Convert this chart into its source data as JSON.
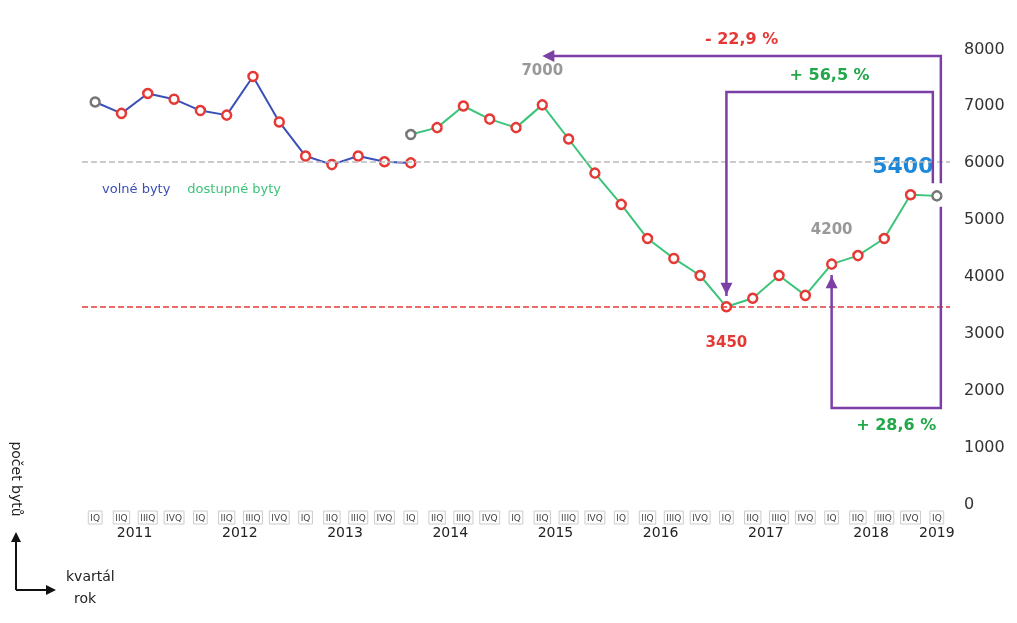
{
  "chart_data": {
    "type": "line",
    "ylabel": "počet bytů",
    "xlabel": "kvartál",
    "categories": [
      "IQ",
      "IIQ",
      "IIIQ",
      "IVQ",
      "IQ",
      "IIQ",
      "IIIQ",
      "IVQ",
      "IQ",
      "IIQ",
      "IIIQ",
      "IVQ",
      "IQ",
      "IIQ",
      "IIIQ",
      "IVQ",
      "IQ",
      "IIQ",
      "IIIQ",
      "IVQ",
      "IQ",
      "IIQ",
      "IIIQ",
      "IVQ",
      "IQ",
      "IIQ",
      "IIIQ",
      "IVQ",
      "IQ",
      "IIQ",
      "IIIQ",
      "IVQ",
      "IQ"
    ],
    "series": [
      {
        "name": "volné byty",
        "color": "#3b4fb8",
        "values": [
          7050,
          6850,
          7200,
          7100,
          6900,
          6820,
          7500,
          6700,
          6100,
          5950,
          6100,
          6000,
          5980,
          null,
          null,
          null,
          null,
          null,
          null,
          null,
          null,
          null,
          null,
          null,
          null,
          null,
          null,
          null,
          null,
          null,
          null,
          null,
          null
        ],
        "colors": [
          "#777777",
          "#e53935",
          "#e53935",
          "#e53935",
          "#e53935",
          "#e53935",
          "#e53935",
          "#e53935",
          "#e53935",
          "#e53935",
          "#e53935",
          "#e53935",
          "#e53935",
          null,
          null,
          null,
          null,
          null,
          null,
          null,
          null,
          null,
          null,
          null,
          null,
          null,
          null,
          null,
          null,
          null,
          null,
          null,
          null
        ]
      },
      {
        "name": "dostupné byty",
        "color": "#3cc47a",
        "values": [
          null,
          null,
          null,
          null,
          null,
          null,
          null,
          null,
          null,
          null,
          null,
          null,
          6480,
          6600,
          6980,
          6750,
          6600,
          7000,
          6400,
          5800,
          5250,
          4650,
          4300,
          4000,
          3450,
          3600,
          4000,
          3650,
          4200,
          4350,
          4650,
          5420,
          5400
        ],
        "colors": [
          null,
          null,
          null,
          null,
          null,
          null,
          null,
          null,
          null,
          null,
          null,
          null,
          "#777777",
          "#e53935",
          "#e53935",
          "#e53935",
          "#e53935",
          "#e53935",
          "#e53935",
          "#e53935",
          "#e53935",
          "#e53935",
          "#e53935",
          "#e53935",
          "#e53935",
          "#e53935",
          "#e53935",
          "#e53935",
          "#e53935",
          "#e53935",
          "#e53935",
          "#e53935",
          "#777777"
        ],
        "value_labels": [
          null,
          null,
          null,
          null,
          null,
          null,
          null,
          null,
          null,
          null,
          null,
          null,
          null,
          null,
          null,
          null,
          null,
          "7000",
          null,
          null,
          null,
          null,
          null,
          null,
          "3450",
          null,
          null,
          null,
          "4200",
          null,
          null,
          null,
          "5400"
        ]
      }
    ],
    "ylim": [
      0,
      8000
    ],
    "yticks": [
      0,
      1000,
      2000,
      3000,
      4000,
      5000,
      6000,
      7000,
      8000
    ],
    "grid": false,
    "legend": "top left",
    "marker": "circle",
    "line_style": "solid",
    "ref_lines": [
      {
        "axis": "y",
        "value": 3450,
        "color": "#e53935",
        "line_style": "dashed"
      },
      {
        "axis": "y",
        "value": 6000,
        "color": "#bbbbbb",
        "line_style": "dashed"
      }
    ],
    "annotations": [
      "- 22,9 %",
      "+ 56,5 %",
      "+ 28,6 %",
      "2011",
      "2012",
      "2013",
      "2014",
      "2015",
      "2016",
      "2017",
      "2018",
      "2019",
      "rok"
    ]
  }
}
